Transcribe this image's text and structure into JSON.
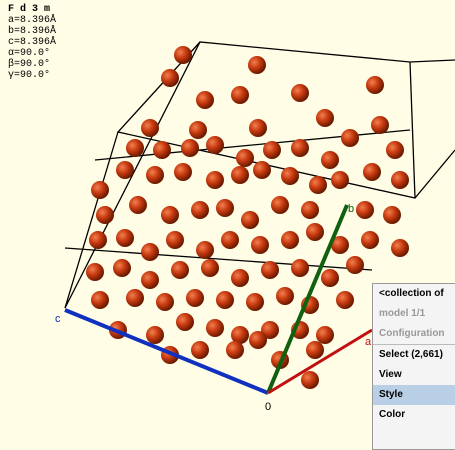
{
  "cell_info": {
    "space_group": "F d 3 m",
    "lines": [
      "a=8.396Å",
      "b=8.396Å",
      "c=8.396Å",
      "α=90.0°",
      "β=90.0°",
      "γ=90.0°"
    ]
  },
  "axes": {
    "origin": "0",
    "a": "a",
    "b": "b",
    "c": "c"
  },
  "menu": {
    "header": "<collection of",
    "disabled": [
      "model 1/1",
      "Configuration"
    ],
    "items": [
      "Select (2,661)",
      "View",
      "Style",
      "Color"
    ],
    "highlighted": "Style"
  }
}
